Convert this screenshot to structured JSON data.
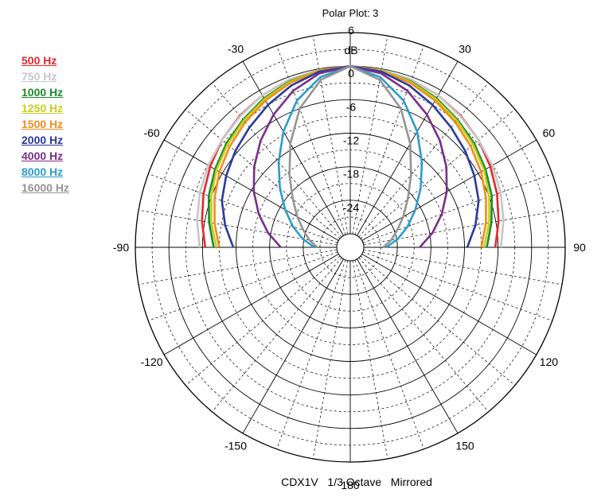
{
  "chart_data": {
    "type": "polar",
    "title": "Polar Plot: 3",
    "subtitle": "CDX1V   1/3 Octave   Mirrored",
    "radial_unit": "dB",
    "radial_range": [
      -30,
      6
    ],
    "radial_ticks": [
      "6",
      "0",
      "-6",
      "-12",
      "-18",
      "-24"
    ],
    "radial_tick_values": [
      6,
      0,
      -6,
      -12,
      -18,
      -24
    ],
    "angle_ticks": [
      "0",
      "30",
      "60",
      "90",
      "120",
      "150",
      "180",
      "-150",
      "-120",
      "-90",
      "-60",
      "-30"
    ],
    "angle_tick_values": [
      0,
      30,
      60,
      90,
      120,
      150,
      180,
      -150,
      -120,
      -90,
      -60,
      -30
    ],
    "angle_labels_drawn": [
      "30",
      "60",
      "90",
      "120",
      "150",
      "180",
      "-150",
      "-120",
      "-90",
      "-60",
      "-30"
    ],
    "grid": true,
    "legend_position": "top-left",
    "angles_deg": [
      0,
      10,
      20,
      30,
      40,
      50,
      60,
      70,
      80,
      90
    ],
    "series": [
      {
        "name": "500 Hz",
        "color": "#e8262c",
        "db": [
          0,
          -0.2,
          -0.5,
          -1.0,
          -1.7,
          -2.5,
          -3.5,
          -4.5,
          -5.5,
          -6.5
        ]
      },
      {
        "name": "750 Hz",
        "color": "#c7c7c7",
        "db": [
          0,
          -0.2,
          -0.5,
          -1.0,
          -1.8,
          -2.5,
          -3.1,
          -3.8,
          -4.6,
          -5.5
        ]
      },
      {
        "name": "1000 Hz",
        "color": "#1a8c2c",
        "db": [
          0,
          -0.3,
          -0.8,
          -1.6,
          -2.6,
          -3.5,
          -4.5,
          -5.5,
          -6.8,
          -8.0
        ]
      },
      {
        "name": "1250 Hz",
        "color": "#c9cf1b",
        "db": [
          0,
          -0.3,
          -0.9,
          -1.8,
          -2.8,
          -3.8,
          -4.8,
          -6.0,
          -7.2,
          -8.5
        ]
      },
      {
        "name": "1500 Hz",
        "color": "#f28c1c",
        "db": [
          0,
          -0.4,
          -1.1,
          -2.1,
          -3.2,
          -4.3,
          -5.4,
          -6.6,
          -7.8,
          -9.0
        ]
      },
      {
        "name": "2000 Hz",
        "color": "#2a3a9c",
        "db": [
          0,
          -0.5,
          -1.6,
          -3.0,
          -4.4,
          -5.6,
          -6.8,
          -8.0,
          -9.7,
          -11.5
        ]
      },
      {
        "name": "4000 Hz",
        "color": "#7a2c8c",
        "db": [
          0,
          -0.8,
          -2.6,
          -5.0,
          -7.5,
          -10.0,
          -12.5,
          -15.0,
          -17.5,
          -20.0
        ]
      },
      {
        "name": "8000 Hz",
        "color": "#2a9ccc",
        "db": [
          0,
          -1.5,
          -4.5,
          -8.5,
          -12.5,
          -16.0,
          -19.0,
          -21.5,
          -23.8,
          -26.0
        ]
      },
      {
        "name": "16000 Hz",
        "color": "#959595",
        "db": [
          0,
          -2.0,
          -6.0,
          -11.0,
          -15.5,
          -19.0,
          -21.5,
          -23.5,
          -25.0,
          -26.5
        ]
      }
    ]
  }
}
